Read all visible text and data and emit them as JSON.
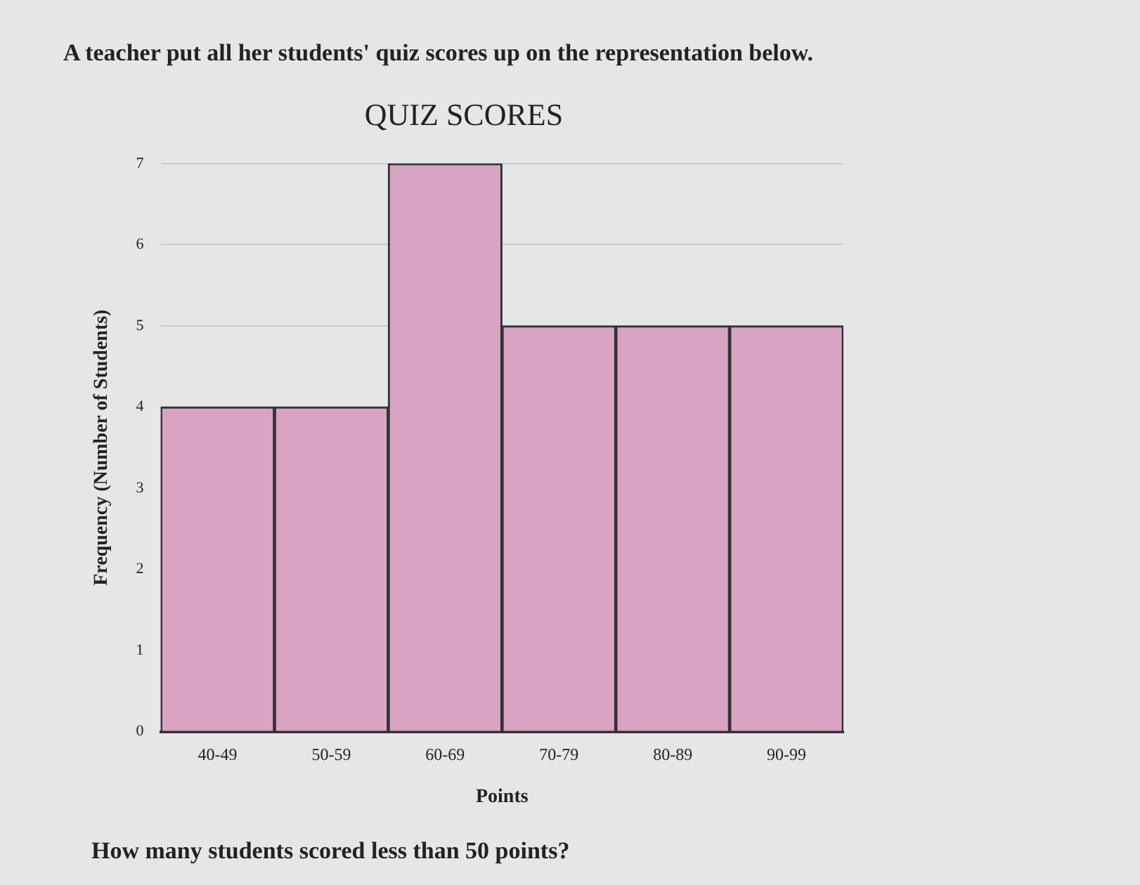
{
  "chart_data": {
    "type": "bar",
    "title": "QUIZ SCORES",
    "xlabel": "Points",
    "ylabel": "Frequency (Number of Students)",
    "categories": [
      "40-49",
      "50-59",
      "60-69",
      "70-79",
      "80-89",
      "90-99"
    ],
    "values": [
      4,
      4,
      7,
      5,
      5,
      5
    ],
    "color": "#d9a3c4",
    "ylim": [
      0,
      7
    ],
    "yticks": [
      0,
      1,
      2,
      3,
      4,
      5,
      6,
      7
    ],
    "grid": "y",
    "annotations": [
      "A teacher put all her students' quiz scores up on the representation below.",
      "How many students scored less than 50 points?"
    ]
  }
}
